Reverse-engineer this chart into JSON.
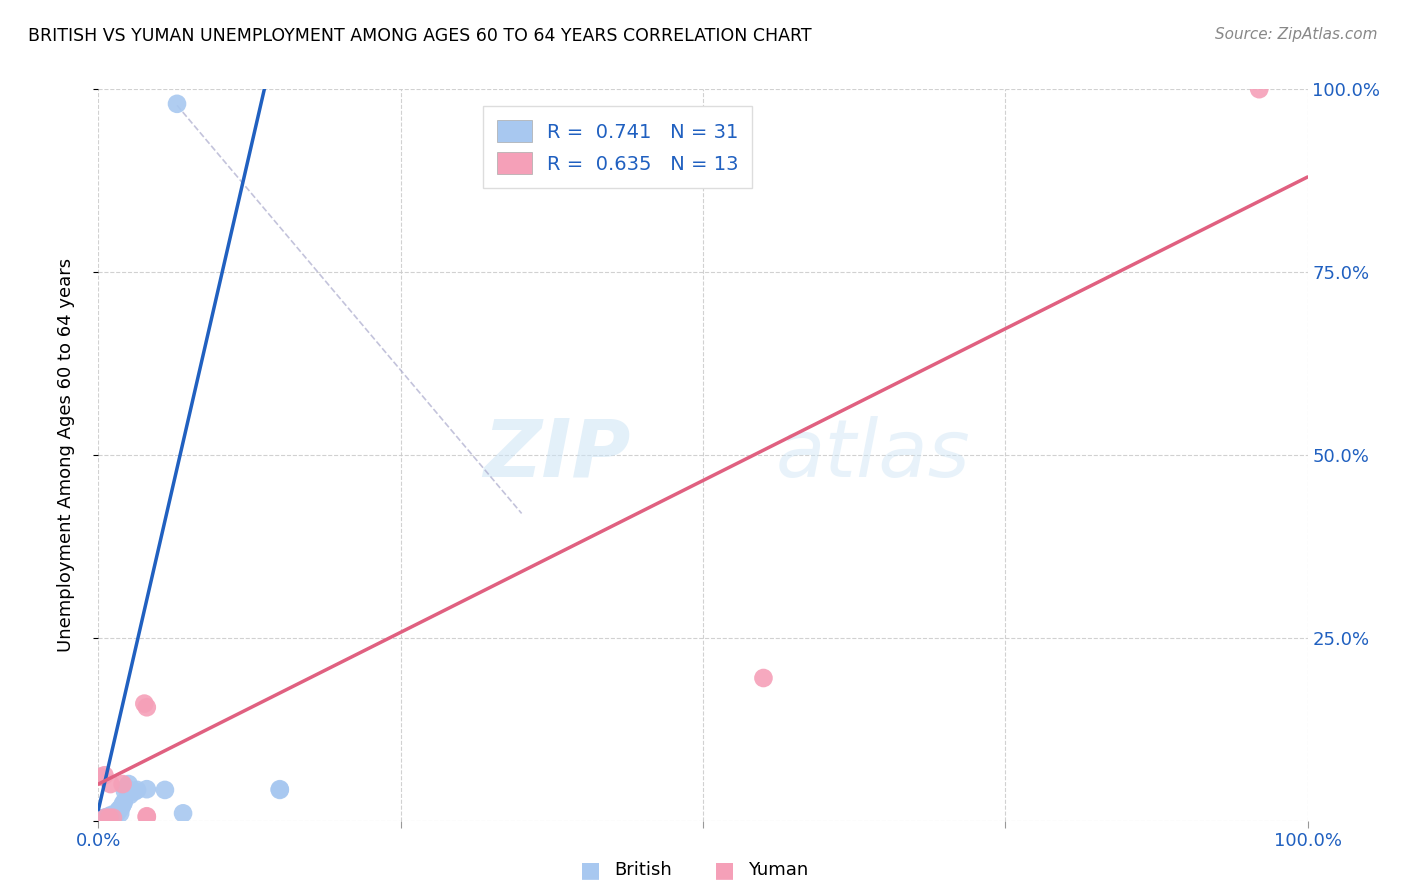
{
  "title": "BRITISH VS YUMAN UNEMPLOYMENT AMONG AGES 60 TO 64 YEARS CORRELATION CHART",
  "source": "Source: ZipAtlas.com",
  "ylabel": "Unemployment Among Ages 60 to 64 years",
  "british_R": "0.741",
  "british_N": "31",
  "yuman_R": "0.635",
  "yuman_N": "13",
  "british_color": "#a8c8f0",
  "yuman_color": "#f5a0b8",
  "british_line_color": "#2060c0",
  "yuman_line_color": "#e06080",
  "legend_label_british": "British",
  "legend_label_yuman": "Yuman",
  "watermark_zip": "ZIP",
  "watermark_atlas": "atlas",
  "british_points": [
    [
      0.002,
      0.002
    ],
    [
      0.003,
      0.003
    ],
    [
      0.004,
      0.002
    ],
    [
      0.005,
      0.004
    ],
    [
      0.006,
      0.003
    ],
    [
      0.007,
      0.005
    ],
    [
      0.008,
      0.004
    ],
    [
      0.009,
      0.006
    ],
    [
      0.01,
      0.003
    ],
    [
      0.011,
      0.008
    ],
    [
      0.012,
      0.006
    ],
    [
      0.013,
      0.007
    ],
    [
      0.015,
      0.01
    ],
    [
      0.016,
      0.012
    ],
    [
      0.017,
      0.015
    ],
    [
      0.018,
      0.01
    ],
    [
      0.019,
      0.018
    ],
    [
      0.02,
      0.022
    ],
    [
      0.021,
      0.025
    ],
    [
      0.022,
      0.04
    ],
    [
      0.023,
      0.045
    ],
    [
      0.025,
      0.05
    ],
    [
      0.026,
      0.035
    ],
    [
      0.03,
      0.04
    ],
    [
      0.032,
      0.042
    ],
    [
      0.04,
      0.043
    ],
    [
      0.055,
      0.042
    ],
    [
      0.07,
      0.01
    ],
    [
      0.065,
      0.98
    ],
    [
      0.15,
      0.042
    ],
    [
      0.15,
      0.043
    ]
  ],
  "yuman_points": [
    [
      0.002,
      0.06
    ],
    [
      0.005,
      0.062
    ],
    [
      0.006,
      0.004
    ],
    [
      0.009,
      0.004
    ],
    [
      0.01,
      0.05
    ],
    [
      0.012,
      0.004
    ],
    [
      0.02,
      0.05
    ],
    [
      0.038,
      0.16
    ],
    [
      0.04,
      0.155
    ],
    [
      0.04,
      0.005
    ],
    [
      0.04,
      0.006
    ],
    [
      0.55,
      0.195
    ],
    [
      0.96,
      1.0
    ]
  ],
  "british_line_x": [
    0.0,
    0.14
  ],
  "british_line_y": [
    0.015,
    1.02
  ],
  "yuman_line_x": [
    0.0,
    1.0
  ],
  "yuman_line_y": [
    0.05,
    0.88
  ],
  "dashed_line_x": [
    0.065,
    0.35
  ],
  "dashed_line_y": [
    0.978,
    0.42
  ],
  "xlim": [
    0.0,
    1.0
  ],
  "ylim": [
    0.0,
    1.0
  ],
  "xticks": [
    0.0,
    0.25,
    0.5,
    0.75,
    1.0
  ],
  "xticklabels": [
    "0.0%",
    "",
    "",
    "",
    "100.0%"
  ],
  "yticks_right": [
    0.0,
    0.25,
    0.5,
    0.75,
    1.0
  ],
  "yticklabels_right": [
    "",
    "25.0%",
    "50.0%",
    "75.0%",
    "100.0%"
  ]
}
